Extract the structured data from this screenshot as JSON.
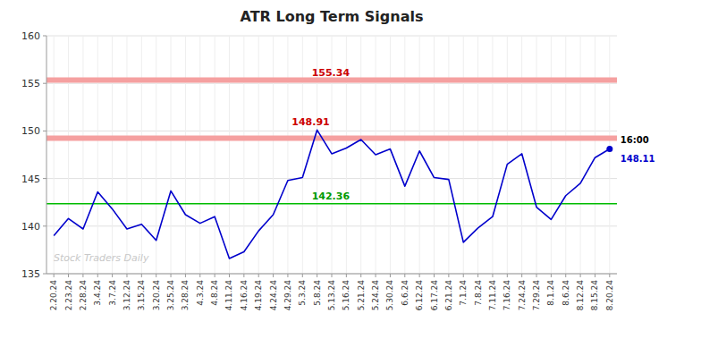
{
  "chart_data": {
    "type": "line",
    "title": "ATR Long Term Signals",
    "categories": [
      "2.20.24",
      "2.23.24",
      "2.28.24",
      "3.4.24",
      "3.7.24",
      "3.12.24",
      "3.15.24",
      "3.20.24",
      "3.25.24",
      "3.28.24",
      "4.3.24",
      "4.8.24",
      "4.11.24",
      "4.16.24",
      "4.19.24",
      "4.24.24",
      "4.29.24",
      "5.3.24",
      "5.8.24",
      "5.13.24",
      "5.16.24",
      "5.21.24",
      "5.24.24",
      "5.30.24",
      "6.6.24",
      "6.12.24",
      "6.17.24",
      "6.21.24",
      "7.1.24",
      "7.8.24",
      "7.11.24",
      "7.16.24",
      "7.24.24",
      "7.29.24",
      "8.1.24",
      "8.6.24",
      "8.12.24",
      "8.15.24",
      "8.20.24"
    ],
    "values": [
      139.0,
      140.8,
      139.7,
      143.6,
      141.8,
      139.7,
      140.2,
      138.5,
      143.7,
      141.2,
      140.3,
      141.0,
      136.6,
      137.3,
      139.5,
      141.2,
      144.8,
      145.1,
      150.1,
      147.6,
      148.2,
      149.1,
      147.5,
      148.1,
      144.2,
      147.9,
      145.1,
      144.9,
      138.3,
      139.8,
      141.0,
      146.5,
      147.6,
      142.0,
      140.7,
      143.2,
      144.5,
      147.2,
      148.11
    ],
    "color": "#0000cc",
    "marker": "last",
    "ylim": [
      135,
      160
    ],
    "yticks": [
      135,
      140,
      145,
      150,
      155,
      160
    ],
    "grid": true,
    "reference_lines": [
      {
        "value": 155.34,
        "color": "#f5a0a0",
        "label": "155.34",
        "label_color": "#cc0000"
      },
      {
        "value": 149.25,
        "color": "#f5a0a0"
      },
      {
        "value": 142.36,
        "color": "#00bb00",
        "label": "142.36",
        "label_color": "#009900"
      }
    ],
    "annotations": [
      {
        "text": "148.91",
        "x": "5.3.24",
        "y": 150.1,
        "color": "#cc0000"
      },
      {
        "text": "16:00",
        "x": "8.20.24",
        "y": 148.11
      },
      {
        "text": "148.11",
        "x": "8.20.24",
        "y": 148.11,
        "color": "#0000cc"
      }
    ],
    "watermark": "Stock Traders Daily"
  }
}
